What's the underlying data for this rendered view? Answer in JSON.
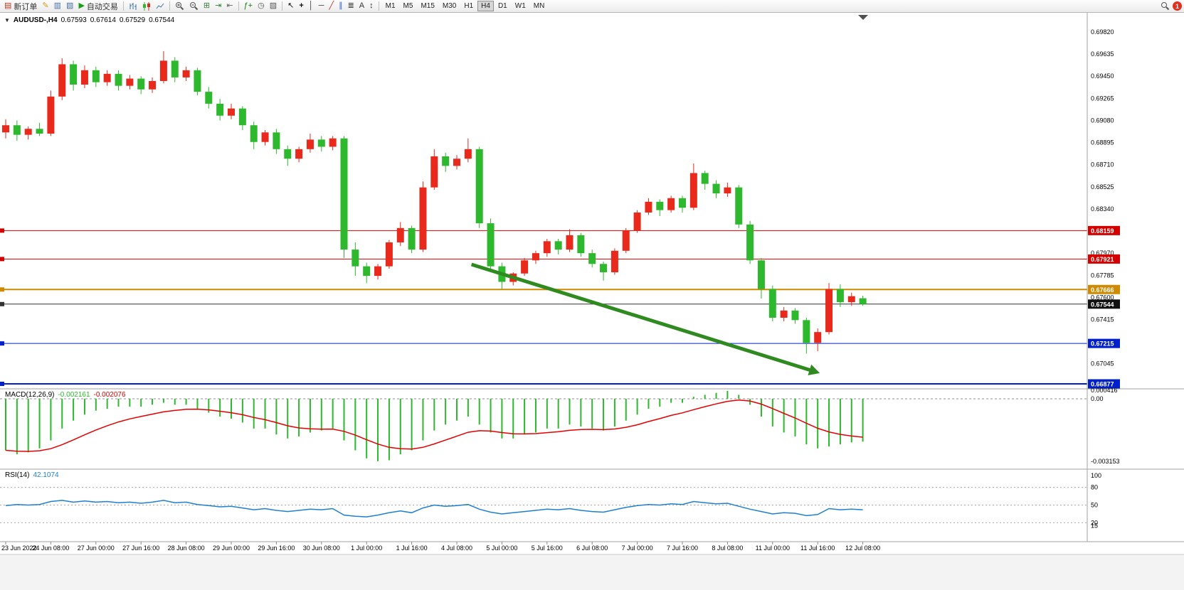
{
  "toolbar": {
    "new_order_label": "新订单",
    "autotrading_label": "自动交易",
    "notification_count": "1",
    "timeframes": [
      "M1",
      "M5",
      "M15",
      "M30",
      "H1",
      "H4",
      "D1",
      "W1",
      "MN"
    ],
    "active_timeframe": "H4",
    "icon_glyphs": {
      "new_order": "▤",
      "metaeditor": "✎",
      "market_watch": "▥",
      "navigator": "▧",
      "autotrading_play": "▶",
      "tile_windows": "⊞",
      "auto_scroll": "⇥",
      "chart_shift": "⇤",
      "indicators": "ƒ+",
      "periods": "◷",
      "templates": "▨",
      "cursor": "↖",
      "crosshair": "+",
      "vertical_line": "│",
      "horizontal_line": "─",
      "trendline": "╱",
      "channel": "∥",
      "fibonacci": "≣",
      "text_tool": "A",
      "arrows_tool": "↕"
    }
  },
  "chart_header": {
    "oct_glyph": "▼",
    "symbol": "AUDUSD-,H4",
    "open": "0.67593",
    "high": "0.67614",
    "low": "0.67529",
    "close": "0.67544"
  },
  "indicators": {
    "macd": {
      "name": "MACD(12,26,9)",
      "main_value": "-0.002161",
      "signal_value": "-0.002076",
      "axis_max": "0.000416",
      "axis_zero": "0.00",
      "axis_min": "-0.003153"
    },
    "rsi": {
      "name": "RSI(14)",
      "value": "42.1074",
      "axis_labels": [
        "100",
        "80",
        "50",
        "20",
        "15"
      ]
    }
  },
  "price_axis_labels": [
    "0.69820",
    "0.69635",
    "0.69450",
    "0.69265",
    "0.69080",
    "0.68895",
    "0.68710",
    "0.68525",
    "0.68340",
    "0.68155",
    "0.67970",
    "0.67785",
    "0.67600",
    "0.67415",
    "0.67230",
    "0.67045",
    "0.66860"
  ],
  "price_badges": [
    {
      "text": "0.68159",
      "color": "#d40000"
    },
    {
      "text": "0.67921",
      "color": "#d40000"
    },
    {
      "text": "0.67666",
      "color": "#cf8a00"
    },
    {
      "text": "0.67544",
      "color": "#111111"
    },
    {
      "text": "0.67215",
      "color": "#0020cc"
    },
    {
      "text": "0.66877",
      "color": "#0020cc"
    }
  ],
  "time_axis_labels": [
    "23 Jun 2022",
    "24 Jun 08:00",
    "27 Jun 00:00",
    "27 Jun 16:00",
    "28 Jun 08:00",
    "29 Jun 00:00",
    "29 Jun 16:00",
    "30 Jun 08:00",
    "1 Jul 00:00",
    "1 Jul 16:00",
    "4 Jul 08:00",
    "5 Jul 00:00",
    "5 Jul 16:00",
    "6 Jul 08:00",
    "7 Jul 00:00",
    "7 Jul 16:00",
    "8 Jul 08:00",
    "11 Jul 00:00",
    "11 Jul 16:00",
    "12 Jul 08:00"
  ],
  "chart_data": {
    "type": "candlestick",
    "symbol": "AUDUSD",
    "timeframe": "H4",
    "current_bar": {
      "open": 0.67593,
      "high": 0.67614,
      "low": 0.67529,
      "close": 0.67544
    },
    "price_axis_range": {
      "top": 0.6982,
      "bottom": 0.6686
    },
    "colors": {
      "up": "#e8291c",
      "down": "#2db82d",
      "macd_bar": "#2db82d",
      "macd_signal": "#e60000",
      "rsi_line": "#1f7fd0",
      "arrow": "#2f8b1f"
    },
    "candles": [
      [
        0.6898,
        0.6909,
        0.6893,
        0.6904
      ],
      [
        0.6904,
        0.6908,
        0.6891,
        0.6896
      ],
      [
        0.6896,
        0.6903,
        0.6892,
        0.6901
      ],
      [
        0.6901,
        0.6906,
        0.6895,
        0.6897
      ],
      [
        0.6897,
        0.6933,
        0.6895,
        0.6928
      ],
      [
        0.6928,
        0.696,
        0.6925,
        0.6955
      ],
      [
        0.6955,
        0.6958,
        0.6933,
        0.6938
      ],
      [
        0.6938,
        0.6954,
        0.6935,
        0.695
      ],
      [
        0.695,
        0.6953,
        0.6936,
        0.694
      ],
      [
        0.694,
        0.695,
        0.6937,
        0.6947
      ],
      [
        0.6947,
        0.695,
        0.6933,
        0.6937
      ],
      [
        0.6937,
        0.6946,
        0.6934,
        0.6943
      ],
      [
        0.6943,
        0.6945,
        0.693,
        0.6934
      ],
      [
        0.6934,
        0.6944,
        0.6931,
        0.6941
      ],
      [
        0.6941,
        0.6966,
        0.6939,
        0.6958
      ],
      [
        0.6958,
        0.6961,
        0.694,
        0.6944
      ],
      [
        0.6944,
        0.6953,
        0.6941,
        0.695
      ],
      [
        0.695,
        0.6952,
        0.6929,
        0.6932
      ],
      [
        0.6932,
        0.6936,
        0.6918,
        0.6922
      ],
      [
        0.6922,
        0.6926,
        0.6908,
        0.6912
      ],
      [
        0.6912,
        0.6922,
        0.6909,
        0.6918
      ],
      [
        0.6918,
        0.692,
        0.69,
        0.6904
      ],
      [
        0.6904,
        0.6907,
        0.6884,
        0.689
      ],
      [
        0.689,
        0.69,
        0.6887,
        0.6898
      ],
      [
        0.6898,
        0.6901,
        0.688,
        0.6884
      ],
      [
        0.6884,
        0.6887,
        0.687,
        0.6876
      ],
      [
        0.6876,
        0.6886,
        0.6873,
        0.6884
      ],
      [
        0.6884,
        0.6897,
        0.6881,
        0.6892
      ],
      [
        0.6892,
        0.6895,
        0.6882,
        0.6886
      ],
      [
        0.6886,
        0.6895,
        0.6883,
        0.6893
      ],
      [
        0.6893,
        0.6895,
        0.6793,
        0.68
      ],
      [
        0.68,
        0.6806,
        0.6778,
        0.6786
      ],
      [
        0.6786,
        0.6789,
        0.6772,
        0.6778
      ],
      [
        0.6778,
        0.6788,
        0.6775,
        0.6786
      ],
      [
        0.6786,
        0.6808,
        0.6784,
        0.6806
      ],
      [
        0.6806,
        0.6823,
        0.6803,
        0.6818
      ],
      [
        0.6818,
        0.682,
        0.6797,
        0.68
      ],
      [
        0.68,
        0.6857,
        0.6798,
        0.6852
      ],
      [
        0.6852,
        0.6884,
        0.685,
        0.6878
      ],
      [
        0.6878,
        0.6881,
        0.6865,
        0.687
      ],
      [
        0.687,
        0.6879,
        0.6867,
        0.6876
      ],
      [
        0.6876,
        0.6893,
        0.6873,
        0.6884
      ],
      [
        0.6884,
        0.6886,
        0.6818,
        0.6822
      ],
      [
        0.6822,
        0.6826,
        0.6783,
        0.6786
      ],
      [
        0.6786,
        0.6789,
        0.6767,
        0.6773
      ],
      [
        0.6773,
        0.6781,
        0.677,
        0.678
      ],
      [
        0.678,
        0.6793,
        0.6778,
        0.6791
      ],
      [
        0.6791,
        0.6799,
        0.6788,
        0.6797
      ],
      [
        0.6797,
        0.6809,
        0.6794,
        0.6807
      ],
      [
        0.6807,
        0.6809,
        0.6796,
        0.68
      ],
      [
        0.68,
        0.6817,
        0.6798,
        0.6812
      ],
      [
        0.6812,
        0.6814,
        0.6794,
        0.6797
      ],
      [
        0.6797,
        0.68,
        0.6785,
        0.6788
      ],
      [
        0.6788,
        0.679,
        0.6774,
        0.6781
      ],
      [
        0.6781,
        0.6801,
        0.6779,
        0.6799
      ],
      [
        0.6799,
        0.6818,
        0.6797,
        0.6816
      ],
      [
        0.6816,
        0.6833,
        0.6814,
        0.6831
      ],
      [
        0.6831,
        0.6843,
        0.6829,
        0.684
      ],
      [
        0.684,
        0.6842,
        0.6828,
        0.6833
      ],
      [
        0.6833,
        0.6845,
        0.6831,
        0.6843
      ],
      [
        0.6843,
        0.6845,
        0.6831,
        0.6835
      ],
      [
        0.6835,
        0.6872,
        0.6833,
        0.6864
      ],
      [
        0.6864,
        0.6866,
        0.685,
        0.6855
      ],
      [
        0.6855,
        0.6858,
        0.6843,
        0.6847
      ],
      [
        0.6847,
        0.6856,
        0.6844,
        0.6852
      ],
      [
        0.6852,
        0.6854,
        0.6818,
        0.6821
      ],
      [
        0.6821,
        0.6824,
        0.6788,
        0.6791
      ],
      [
        0.6791,
        0.6793,
        0.6759,
        0.6767
      ],
      [
        0.6767,
        0.677,
        0.674,
        0.6743
      ],
      [
        0.6743,
        0.6752,
        0.674,
        0.6749
      ],
      [
        0.6749,
        0.6751,
        0.6738,
        0.6741
      ],
      [
        0.6741,
        0.6743,
        0.6713,
        0.6722
      ],
      [
        0.6722,
        0.6734,
        0.6715,
        0.6731
      ],
      [
        0.6731,
        0.6772,
        0.6729,
        0.6767
      ],
      [
        0.6767,
        0.6771,
        0.6752,
        0.6756
      ],
      [
        0.6756,
        0.6764,
        0.6753,
        0.6761
      ],
      [
        0.67593,
        0.67614,
        0.67529,
        0.67544
      ]
    ],
    "levels": [
      {
        "price": 0.68159,
        "color": "#d40000",
        "width": 1
      },
      {
        "price": 0.67921,
        "color": "#d40000",
        "width": 1
      },
      {
        "price": 0.67666,
        "color": "#cf8a00",
        "width": 2
      },
      {
        "price": 0.67544,
        "color": "#333333",
        "width": 1
      },
      {
        "price": 0.67215,
        "color": "#0020cc",
        "width": 1
      },
      {
        "price": 0.66877,
        "color": "#0020cc",
        "width": 2
      }
    ],
    "macd_histogram": [
      -0.0026,
      -0.0028,
      -0.0027,
      -0.0025,
      -0.0021,
      -0.0015,
      -0.0011,
      -0.0008,
      -0.0006,
      -0.0005,
      -0.0004,
      -0.0004,
      -0.0004,
      -0.0003,
      -0.0002,
      -0.0003,
      -0.0003,
      -0.0005,
      -0.0007,
      -0.0009,
      -0.001,
      -0.0012,
      -0.0015,
      -0.0015,
      -0.0018,
      -0.002,
      -0.0019,
      -0.0017,
      -0.0016,
      -0.0015,
      -0.0021,
      -0.0026,
      -0.003,
      -0.00315,
      -0.0031,
      -0.0028,
      -0.0026,
      -0.0021,
      -0.0016,
      -0.0013,
      -0.0011,
      -0.0009,
      -0.0013,
      -0.0017,
      -0.002,
      -0.002,
      -0.0018,
      -0.0017,
      -0.0015,
      -0.0015,
      -0.0013,
      -0.0014,
      -0.0015,
      -0.0016,
      -0.0014,
      -0.0011,
      -0.0008,
      -0.0005,
      -0.0004,
      -0.0002,
      -0.0002,
      0.0001,
      0.0002,
      0.0003,
      0.0004,
      0.0002,
      -0.0003,
      -0.0009,
      -0.0014,
      -0.0017,
      -0.0019,
      -0.0023,
      -0.0025,
      -0.0024,
      -0.0023,
      -0.0022,
      -0.002161
    ],
    "rsi_values": [
      49,
      51,
      50,
      51,
      56,
      58,
      55,
      57,
      55,
      56,
      54,
      55,
      53,
      55,
      58,
      54,
      55,
      51,
      49,
      47,
      48,
      45,
      42,
      44,
      41,
      39,
      41,
      43,
      42,
      44,
      33,
      31,
      30,
      33,
      37,
      40,
      37,
      45,
      50,
      48,
      49,
      51,
      43,
      38,
      35,
      37,
      39,
      41,
      43,
      42,
      44,
      41,
      39,
      38,
      42,
      46,
      49,
      51,
      50,
      52,
      51,
      56,
      54,
      52,
      53,
      48,
      43,
      39,
      35,
      37,
      36,
      32,
      34,
      44,
      42,
      43,
      42.1
    ],
    "trend_arrow": {
      "from_bar": 41.3,
      "from_price": 0.67876,
      "to_bar": 71.4,
      "to_price": 0.6699,
      "color": "#2f8b1f"
    }
  }
}
